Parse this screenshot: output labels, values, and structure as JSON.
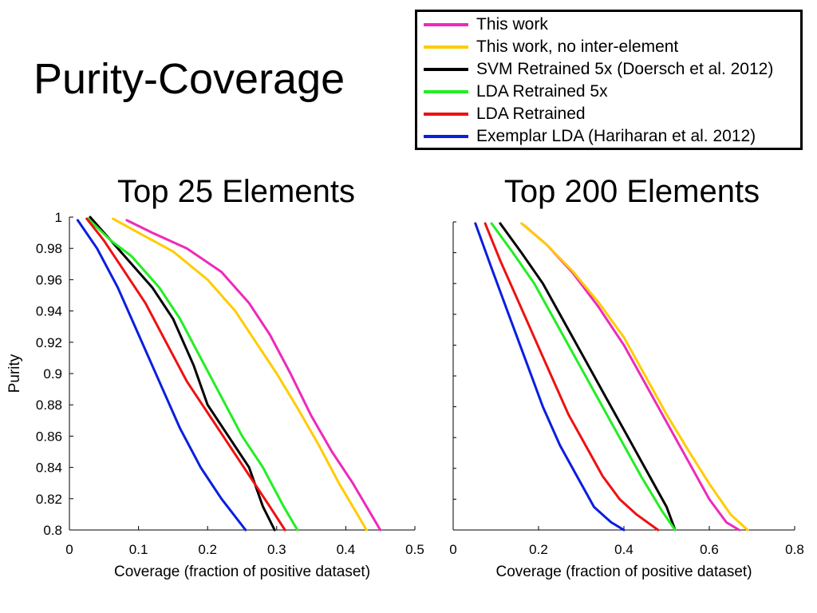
{
  "slide": {
    "title": "Purity-Coverage"
  },
  "legend": {
    "items": [
      {
        "label": "This work",
        "color": "#ee2aba"
      },
      {
        "label": "This work, no inter-element",
        "color": "#ffcc00"
      },
      {
        "label": "SVM Retrained 5x (Doersch et al. 2012)",
        "color": "#000000"
      },
      {
        "label": "LDA Retrained 5x",
        "color": "#22ee22"
      },
      {
        "label": "LDA Retrained",
        "color": "#ee1111"
      },
      {
        "label": "Exemplar LDA (Hariharan et al. 2012)",
        "color": "#0a1ee0"
      }
    ]
  },
  "chart_data": [
    {
      "type": "line",
      "title": "Top 25 Elements",
      "xlabel": "Coverage (fraction of positive dataset)",
      "ylabel": "Purity",
      "xlim": [
        0,
        0.5
      ],
      "ylim": [
        0.8,
        1
      ],
      "xticks": [
        "0",
        "0.1",
        "0.2",
        "0.3",
        "0.4",
        "0.5"
      ],
      "yticks": [
        "0.8",
        "0.82",
        "0.84",
        "0.86",
        "0.88",
        "0.9",
        "0.92",
        "0.94",
        "0.96",
        "0.98",
        "1"
      ],
      "grid": false,
      "series": [
        {
          "name": "This work",
          "color": "#ee2aba",
          "x": [
            0.083,
            0.12,
            0.17,
            0.22,
            0.26,
            0.29,
            0.32,
            0.35,
            0.38,
            0.41,
            0.43,
            0.45
          ],
          "y": [
            0.998,
            0.99,
            0.98,
            0.965,
            0.945,
            0.925,
            0.9,
            0.873,
            0.85,
            0.83,
            0.815,
            0.8
          ]
        },
        {
          "name": "This work, no inter-element",
          "color": "#ffcc00",
          "x": [
            0.063,
            0.1,
            0.15,
            0.2,
            0.24,
            0.27,
            0.3,
            0.33,
            0.36,
            0.39,
            0.41,
            0.43
          ],
          "y": [
            0.999,
            0.99,
            0.978,
            0.96,
            0.94,
            0.92,
            0.9,
            0.878,
            0.855,
            0.83,
            0.815,
            0.8
          ]
        },
        {
          "name": "SVM Retrained 5x (Doersch et al. 2012)",
          "color": "#000000",
          "x": [
            0.03,
            0.06,
            0.09,
            0.12,
            0.15,
            0.18,
            0.2,
            0.23,
            0.26,
            0.28,
            0.297
          ],
          "y": [
            1.0,
            0.985,
            0.97,
            0.955,
            0.935,
            0.905,
            0.88,
            0.86,
            0.84,
            0.815,
            0.8
          ]
        },
        {
          "name": "LDA Retrained 5x",
          "color": "#22ee22",
          "x": [
            0.027,
            0.06,
            0.09,
            0.13,
            0.16,
            0.19,
            0.22,
            0.25,
            0.28,
            0.31,
            0.33
          ],
          "y": [
            0.999,
            0.985,
            0.975,
            0.955,
            0.935,
            0.91,
            0.885,
            0.86,
            0.84,
            0.815,
            0.8
          ]
        },
        {
          "name": "LDA Retrained",
          "color": "#ee1111",
          "x": [
            0.025,
            0.05,
            0.08,
            0.11,
            0.14,
            0.17,
            0.2,
            0.23,
            0.26,
            0.29,
            0.312
          ],
          "y": [
            0.999,
            0.985,
            0.965,
            0.945,
            0.92,
            0.895,
            0.875,
            0.855,
            0.835,
            0.815,
            0.8
          ]
        },
        {
          "name": "Exemplar LDA (Hariharan et al. 2012)",
          "color": "#0a1ee0",
          "x": [
            0.012,
            0.04,
            0.07,
            0.1,
            0.13,
            0.16,
            0.19,
            0.22,
            0.255
          ],
          "y": [
            0.998,
            0.98,
            0.955,
            0.925,
            0.895,
            0.865,
            0.84,
            0.82,
            0.8
          ]
        }
      ]
    },
    {
      "type": "line",
      "title": "Top 200 Elements",
      "xlabel": "Coverage (fraction of positive dataset)",
      "ylabel": "",
      "xlim": [
        0,
        0.8
      ],
      "ylim": [
        0.8,
        1
      ],
      "xticks": [
        "0",
        "0.2",
        "0.4",
        "0.6",
        "0.8"
      ],
      "yticks": [],
      "grid": false,
      "series": [
        {
          "name": "This work",
          "color": "#ee2aba",
          "x": [
            0.165,
            0.22,
            0.28,
            0.34,
            0.4,
            0.45,
            0.5,
            0.55,
            0.6,
            0.64,
            0.67
          ],
          "y": [
            0.998,
            0.985,
            0.967,
            0.945,
            0.92,
            0.895,
            0.87,
            0.845,
            0.82,
            0.805,
            0.8
          ]
        },
        {
          "name": "This work, no inter-element",
          "color": "#ffcc00",
          "x": [
            0.16,
            0.22,
            0.28,
            0.34,
            0.4,
            0.45,
            0.5,
            0.55,
            0.6,
            0.65,
            0.69
          ],
          "y": [
            0.999,
            0.985,
            0.968,
            0.948,
            0.925,
            0.9,
            0.875,
            0.852,
            0.83,
            0.81,
            0.8
          ]
        },
        {
          "name": "SVM Retrained 5x (Doersch et al. 2012)",
          "color": "#000000",
          "x": [
            0.11,
            0.16,
            0.21,
            0.26,
            0.31,
            0.36,
            0.41,
            0.46,
            0.5,
            0.52
          ],
          "y": [
            0.999,
            0.98,
            0.96,
            0.935,
            0.91,
            0.885,
            0.86,
            0.835,
            0.815,
            0.8
          ]
        },
        {
          "name": "LDA Retrained 5x",
          "color": "#22ee22",
          "x": [
            0.09,
            0.14,
            0.19,
            0.24,
            0.29,
            0.34,
            0.39,
            0.44,
            0.49,
            0.52
          ],
          "y": [
            0.999,
            0.98,
            0.96,
            0.935,
            0.91,
            0.885,
            0.86,
            0.835,
            0.812,
            0.8
          ]
        },
        {
          "name": "LDA Retrained",
          "color": "#ee1111",
          "x": [
            0.075,
            0.11,
            0.15,
            0.19,
            0.23,
            0.27,
            0.31,
            0.35,
            0.39,
            0.43,
            0.48
          ],
          "y": [
            0.999,
            0.975,
            0.95,
            0.925,
            0.9,
            0.875,
            0.855,
            0.835,
            0.82,
            0.81,
            0.8
          ]
        },
        {
          "name": "Exemplar LDA (Hariharan et al. 2012)",
          "color": "#0a1ee0",
          "x": [
            0.052,
            0.09,
            0.13,
            0.17,
            0.21,
            0.25,
            0.29,
            0.33,
            0.37,
            0.4
          ],
          "y": [
            0.999,
            0.97,
            0.94,
            0.91,
            0.88,
            0.855,
            0.835,
            0.815,
            0.805,
            0.8
          ]
        }
      ]
    }
  ]
}
